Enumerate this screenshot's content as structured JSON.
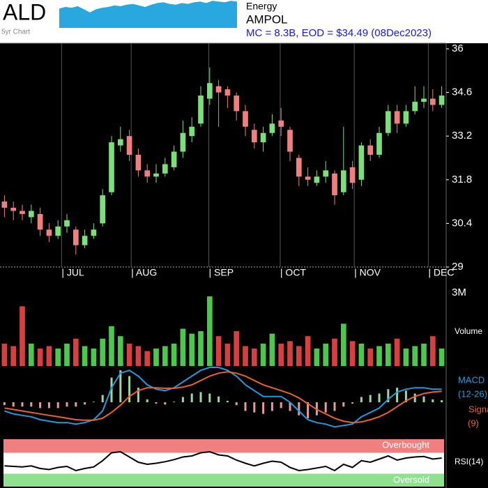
{
  "header": {
    "ticker": "ALD",
    "sector": "Energy",
    "name": "AMPOL",
    "summary": "MC = 8.3B, EOD = $34.49 (08Dec2023)"
  },
  "chart_data": [
    {
      "type": "area",
      "label": "5yr Chart",
      "color": "#29a8e0",
      "ylim": [
        0,
        36
      ],
      "values": [
        25,
        27,
        26,
        28,
        24,
        20,
        24,
        26,
        27,
        29,
        28,
        30,
        31,
        29,
        27,
        30,
        32,
        33,
        31,
        30,
        32,
        31,
        33,
        34,
        32,
        35,
        34,
        33,
        35,
        34
      ]
    },
    {
      "type": "candlestick",
      "up_color": "#7be07b",
      "down_color": "#f08080",
      "xlim": [
        -0.5,
        49.5
      ],
      "ylim": [
        29,
        36
      ],
      "yticks": [
        29,
        30.4,
        31.8,
        33.2,
        34.6,
        36
      ],
      "xticks": [
        {
          "value": 6.4,
          "label": "| JUL"
        },
        {
          "value": 14.2,
          "label": "| AUG"
        },
        {
          "value": 22.9,
          "label": "| SEP"
        },
        {
          "value": 30.9,
          "label": "| OCT"
        },
        {
          "value": 39.2,
          "label": "| NOV"
        },
        {
          "value": 47.5,
          "label": "| DEC"
        }
      ],
      "open": [
        31.1,
        30.9,
        30.8,
        30.6,
        30.7,
        30.2,
        30.0,
        30.3,
        30.2,
        29.7,
        30.0,
        30.4,
        31.4,
        32.9,
        33.2,
        32.6,
        32.1,
        31.9,
        32.0,
        32.2,
        32.7,
        33.2,
        33.6,
        34.4,
        34.8,
        34.7,
        34.5,
        34.0,
        33.4,
        33.0,
        33.3,
        33.7,
        33.4,
        32.5,
        31.9,
        31.7,
        31.9,
        32.0,
        31.4,
        32.2,
        31.8,
        32.9,
        32.6,
        33.3,
        34.0,
        33.6,
        34.0,
        34.3,
        34.4,
        34.2
      ],
      "high": [
        31.3,
        31.1,
        31.0,
        31.0,
        30.9,
        30.4,
        30.5,
        30.7,
        30.3,
        30.2,
        30.4,
        31.5,
        33.2,
        33.5,
        33.4,
        32.8,
        32.3,
        32.3,
        32.5,
        32.9,
        33.7,
        33.8,
        34.8,
        35.4,
        35.0,
        34.8,
        34.6,
        34.2,
        33.6,
        33.5,
        33.9,
        34.1,
        33.5,
        32.6,
        32.2,
        32.1,
        32.4,
        32.1,
        33.5,
        32.4,
        33.0,
        33.1,
        33.5,
        34.2,
        34.2,
        34.2,
        34.8,
        34.8,
        34.7,
        34.8
      ],
      "low": [
        30.6,
        30.5,
        30.5,
        30.4,
        30.0,
        29.8,
        29.9,
        30.1,
        29.4,
        29.6,
        29.9,
        30.3,
        31.3,
        32.7,
        32.4,
        31.9,
        31.7,
        31.7,
        31.9,
        32.1,
        32.5,
        33.0,
        33.5,
        34.2,
        33.5,
        34.1,
        33.7,
        33.2,
        32.8,
        32.7,
        33.2,
        33.2,
        32.4,
        31.6,
        31.6,
        31.6,
        31.7,
        31.0,
        31.3,
        31.5,
        31.6,
        32.4,
        32.5,
        33.2,
        33.3,
        33.5,
        33.9,
        34.1,
        34.0,
        34.1
      ],
      "close": [
        30.9,
        30.8,
        30.7,
        30.8,
        30.2,
        30.0,
        30.3,
        30.5,
        29.7,
        30.0,
        30.2,
        31.3,
        33.0,
        33.1,
        32.6,
        32.1,
        31.9,
        32.0,
        32.3,
        32.7,
        33.3,
        33.5,
        34.5,
        34.9,
        34.6,
        34.5,
        34.0,
        33.5,
        33.0,
        33.3,
        33.6,
        33.5,
        32.7,
        31.9,
        31.8,
        31.9,
        32.1,
        31.3,
        32.1,
        31.7,
        32.9,
        32.6,
        33.3,
        34.0,
        33.6,
        34.0,
        34.3,
        34.4,
        34.2,
        34.5
      ]
    },
    {
      "type": "bar",
      "label": "Volume",
      "ylim": [
        0,
        3000000
      ],
      "yticks": [
        {
          "value": 3000000,
          "label": "3M"
        }
      ],
      "values": [
        900000,
        800000,
        2400000,
        900000,
        700000,
        800000,
        700000,
        900000,
        1100000,
        800000,
        700000,
        1100000,
        1600000,
        1200000,
        900000,
        800000,
        600000,
        700000,
        800000,
        900000,
        1500000,
        1300000,
        1400000,
        2800000,
        1200000,
        900000,
        1400000,
        800000,
        700000,
        900000,
        1300000,
        900000,
        1000000,
        800000,
        1200000,
        700000,
        900000,
        1100000,
        1700000,
        1000000,
        900000,
        700000,
        800000,
        900000,
        1100000,
        700000,
        800000,
        900000,
        1200000,
        700000
      ]
    },
    {
      "type": "line",
      "ylim": [
        -1.2,
        1.2
      ],
      "series": [
        {
          "name": "MACD",
          "period": "(12-26)",
          "color": "#1e9be0",
          "values": [
            -0.3,
            -0.4,
            -0.45,
            -0.5,
            -0.6,
            -0.65,
            -0.7,
            -0.7,
            -0.75,
            -0.7,
            -0.6,
            -0.3,
            0.5,
            1.0,
            1.1,
            0.9,
            0.6,
            0.45,
            0.4,
            0.5,
            0.7,
            0.9,
            1.1,
            1.2,
            1.2,
            1.1,
            0.9,
            0.6,
            0.4,
            0.2,
            0.2,
            0.2,
            0.0,
            -0.3,
            -0.6,
            -0.7,
            -0.75,
            -0.85,
            -0.8,
            -0.75,
            -0.5,
            -0.35,
            -0.2,
            0.1,
            0.35,
            0.45,
            0.5,
            0.5,
            0.45,
            0.45
          ]
        },
        {
          "name": "Signal",
          "period": "(9)",
          "color": "#e8622a",
          "values": [
            -0.2,
            -0.25,
            -0.3,
            -0.35,
            -0.4,
            -0.45,
            -0.5,
            -0.55,
            -0.6,
            -0.62,
            -0.62,
            -0.55,
            -0.35,
            -0.1,
            0.2,
            0.4,
            0.5,
            0.5,
            0.48,
            0.48,
            0.52,
            0.6,
            0.75,
            0.9,
            1.0,
            1.05,
            1.0,
            0.9,
            0.75,
            0.6,
            0.5,
            0.4,
            0.3,
            0.15,
            -0.05,
            -0.25,
            -0.4,
            -0.55,
            -0.65,
            -0.7,
            -0.68,
            -0.6,
            -0.5,
            -0.35,
            -0.15,
            0.05,
            0.2,
            0.3,
            0.35,
            0.38
          ]
        }
      ],
      "histogram": {
        "up_color": "#9cd89c",
        "down_color": "#e89a9a",
        "values": [
          -0.1,
          -0.15,
          -0.15,
          -0.15,
          -0.2,
          -0.2,
          -0.2,
          -0.15,
          -0.15,
          -0.08,
          0.02,
          0.25,
          0.85,
          1.1,
          0.9,
          0.5,
          0.1,
          -0.05,
          -0.08,
          0.02,
          0.18,
          0.3,
          0.35,
          0.3,
          0.2,
          0.05,
          -0.1,
          -0.3,
          -0.35,
          -0.4,
          -0.3,
          -0.2,
          -0.3,
          -0.45,
          -0.55,
          -0.45,
          -0.35,
          -0.3,
          -0.15,
          -0.05,
          0.18,
          0.25,
          0.3,
          0.45,
          0.5,
          0.4,
          0.3,
          0.2,
          0.1,
          0.07
        ]
      }
    },
    {
      "type": "line",
      "label": "RSI(14)",
      "color": "#000000",
      "ylim": [
        0,
        100
      ],
      "overbought": {
        "label": "Overbought",
        "value": 70,
        "color": "#f08080"
      },
      "oversold": {
        "label": "Oversold",
        "value": 30,
        "color": "#8fe08f"
      },
      "values": [
        45,
        44,
        43,
        45,
        40,
        38,
        42,
        44,
        36,
        40,
        43,
        55,
        70,
        72,
        62,
        52,
        48,
        50,
        53,
        57,
        62,
        64,
        70,
        72,
        66,
        64,
        56,
        50,
        45,
        50,
        54,
        52,
        42,
        36,
        38,
        41,
        44,
        36,
        48,
        42,
        55,
        52,
        58,
        64,
        56,
        60,
        62,
        63,
        58,
        60
      ]
    }
  ]
}
